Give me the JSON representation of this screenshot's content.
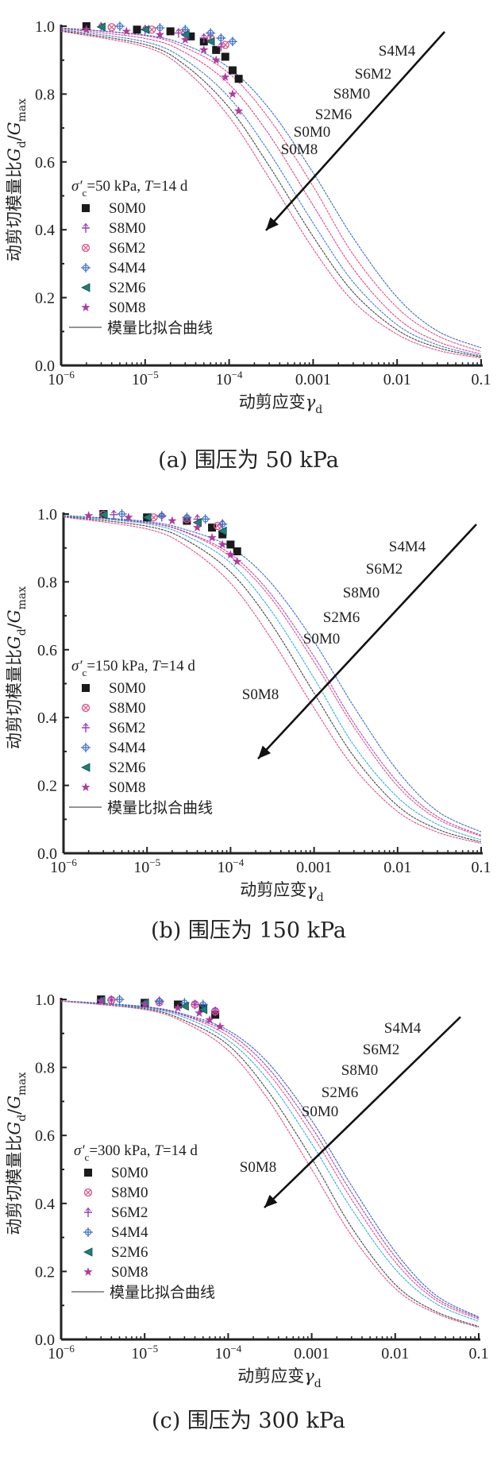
{
  "chart_data": [
    {
      "type": "line",
      "panel": "a",
      "caption": "(a) 围压为 50 kPa",
      "condition": {
        "prefix": "σ′",
        "sub": "c",
        "text": "=50 kPa, ",
        "T": "T",
        "t_text": "=14 d"
      },
      "xlabel": {
        "text": "动剪应变",
        "sym": "γ",
        "sub": "d"
      },
      "ylabel": {
        "text": "动剪切模量比",
        "sym1": "G",
        "sub1": "d",
        "slash": "/",
        "sym2": "G",
        "sub2": "max"
      },
      "xscale": "log",
      "xlim": [
        1e-06,
        0.1
      ],
      "ylim": [
        0,
        1.0
      ],
      "xticks": [
        {
          "v": 1e-06,
          "base": "10",
          "exp": "−6"
        },
        {
          "v": 1e-05,
          "base": "10",
          "exp": "−5"
        },
        {
          "v": 0.0001,
          "base": "10",
          "exp": "−4"
        },
        {
          "v": 0.001,
          "base": "0.001",
          "exp": ""
        },
        {
          "v": 0.01,
          "base": "0.01",
          "exp": ""
        },
        {
          "v": 0.1,
          "base": "0.1",
          "exp": ""
        }
      ],
      "yticks": [
        {
          "v": 0.0,
          "label": "0.0"
        },
        {
          "v": 0.2,
          "label": "0.2"
        },
        {
          "v": 0.4,
          "label": "0.4"
        },
        {
          "v": 0.6,
          "label": "0.6"
        },
        {
          "v": 0.8,
          "label": "0.8"
        },
        {
          "v": 1.0,
          "label": "1.0"
        }
      ],
      "legend_placement": "left",
      "fit_legend": "模量比拟合曲线",
      "arrow_labels": [
        "S4M4",
        "S6M2",
        "S8M0",
        "S2M6",
        "S0M0",
        "S0M8"
      ],
      "x": [
        1e-06,
        1e-05,
        3e-05,
        0.0001,
        0.0003,
        0.001,
        0.003,
        0.01,
        0.03,
        0.1
      ],
      "series": [
        {
          "name": "S0M0",
          "marker": "square",
          "color": "#1a1a1a",
          "line_color": "#444444",
          "values": [
            0.987,
            0.946,
            0.885,
            0.76,
            0.588,
            0.38,
            0.216,
            0.105,
            0.053,
            0.025
          ],
          "points": [
            [
              2e-06,
              1.0
            ],
            [
              8e-06,
              0.99
            ],
            [
              2e-05,
              0.985
            ],
            [
              3.5e-05,
              0.97
            ],
            [
              5e-05,
              0.955
            ],
            [
              7e-05,
              0.93
            ],
            [
              9e-05,
              0.91
            ],
            [
              0.00011,
              0.87
            ],
            [
              0.00013,
              0.845
            ]
          ]
        },
        {
          "name": "S8M0",
          "marker": "plus-circle",
          "color": "#9b3fb5",
          "line_color": "#d9468c",
          "values": [
            0.993,
            0.964,
            0.922,
            0.829,
            0.68,
            0.472,
            0.285,
            0.14,
            0.071,
            0.033
          ],
          "points": [
            [
              3e-06,
              0.998
            ],
            [
              1e-05,
              0.99
            ],
            [
              2.5e-05,
              0.98
            ],
            [
              5e-05,
              0.965
            ],
            [
              8e-05,
              0.94
            ]
          ]
        },
        {
          "name": "S6M2",
          "marker": "circle-x",
          "color": "#e0508a",
          "line_color": "#e0508a",
          "values": [
            0.995,
            0.972,
            0.937,
            0.861,
            0.727,
            0.528,
            0.327,
            0.171,
            0.088,
            0.041
          ],
          "points": [
            [
              4e-06,
              0.997
            ],
            [
              1.2e-05,
              0.99
            ],
            [
              3e-05,
              0.98
            ],
            [
              6e-05,
              0.965
            ],
            [
              9e-05,
              0.945
            ]
          ]
        },
        {
          "name": "S4M4",
          "marker": "diamond-cross",
          "color": "#3a6fc4",
          "line_color": "#3a6fc4",
          "values": [
            0.995,
            0.974,
            0.945,
            0.877,
            0.757,
            0.568,
            0.376,
            0.201,
            0.102,
            0.052
          ],
          "points": [
            [
              5e-06,
              1.0
            ],
            [
              1.5e-05,
              0.995
            ],
            [
              3e-05,
              0.99
            ],
            [
              6e-05,
              0.98
            ],
            [
              8e-05,
              0.965
            ],
            [
              0.00011,
              0.955
            ]
          ]
        },
        {
          "name": "S2M6",
          "marker": "triangle-left",
          "color": "#1b7f7a",
          "line_color": "#3a7fd0",
          "values": [
            0.99,
            0.954,
            0.901,
            0.79,
            0.628,
            0.42,
            0.246,
            0.12,
            0.061,
            0.028
          ],
          "points": [
            [
              3e-06,
              0.998
            ],
            [
              1e-05,
              0.99
            ],
            [
              3e-05,
              0.975
            ],
            [
              6e-05,
              0.955
            ]
          ]
        },
        {
          "name": "S0M8",
          "marker": "star",
          "color": "#b03aa0",
          "line_color": "#e0508a",
          "values": [
            0.985,
            0.939,
            0.871,
            0.733,
            0.552,
            0.344,
            0.189,
            0.092,
            0.045,
            0.022
          ],
          "points": [
            [
              2e-06,
              0.99
            ],
            [
              6e-06,
              0.985
            ],
            [
              1.5e-05,
              0.975
            ],
            [
              3e-05,
              0.96
            ],
            [
              5e-05,
              0.93
            ],
            [
              7e-05,
              0.9
            ],
            [
              9e-05,
              0.85
            ],
            [
              0.00011,
              0.8
            ],
            [
              0.00013,
              0.75
            ]
          ]
        }
      ]
    },
    {
      "type": "line",
      "panel": "b",
      "caption": "(b) 围压为 150 kPa",
      "condition": {
        "prefix": "σ′",
        "sub": "c",
        "text": "=150 kPa, ",
        "T": "T",
        "t_text": "=14 d"
      },
      "xlabel": {
        "text": "动剪应变",
        "sym": "γ",
        "sub": "d"
      },
      "ylabel": {
        "text": "动剪切模量比",
        "sym1": "G",
        "sub1": "d",
        "slash": "/",
        "sym2": "G",
        "sub2": "max"
      },
      "xscale": "log",
      "xlim": [
        1e-06,
        0.1
      ],
      "ylim": [
        0,
        1.0
      ],
      "xticks": [
        {
          "v": 1e-06,
          "base": "10",
          "exp": "−6"
        },
        {
          "v": 1e-05,
          "base": "10",
          "exp": "−5"
        },
        {
          "v": 0.0001,
          "base": "10",
          "exp": "−4"
        },
        {
          "v": 0.001,
          "base": "0.001",
          "exp": ""
        },
        {
          "v": 0.01,
          "base": "0.01",
          "exp": ""
        },
        {
          "v": 0.1,
          "base": "0.1",
          "exp": ""
        }
      ],
      "yticks": [
        {
          "v": 0.0,
          "label": "0.0"
        },
        {
          "v": 0.2,
          "label": "0.2"
        },
        {
          "v": 0.4,
          "label": "0.4"
        },
        {
          "v": 0.6,
          "label": "0.6"
        },
        {
          "v": 0.8,
          "label": "0.8"
        },
        {
          "v": 1.0,
          "label": "1.0"
        }
      ],
      "legend_placement": "left",
      "fit_legend": "模量比拟合曲线",
      "arrow_labels": [
        "S4M4",
        "S6M2",
        "S8M0",
        "S2M6",
        "S0M0",
        "S0M8"
      ],
      "x": [
        1e-06,
        1e-05,
        3e-05,
        0.0001,
        0.0003,
        0.001,
        0.003,
        0.01,
        0.03,
        0.1
      ],
      "series": [
        {
          "name": "S0M0",
          "marker": "square",
          "color": "#1a1a1a",
          "line_color": "#444444",
          "values": [
            0.993,
            0.964,
            0.922,
            0.829,
            0.68,
            0.472,
            0.285,
            0.14,
            0.071,
            0.033
          ],
          "points": [
            [
              3e-06,
              1.0
            ],
            [
              1e-05,
              0.99
            ],
            [
              3e-05,
              0.98
            ],
            [
              6e-05,
              0.96
            ],
            [
              8e-05,
              0.94
            ],
            [
              0.0001,
              0.91
            ],
            [
              0.00012,
              0.89
            ]
          ]
        },
        {
          "name": "S8M0",
          "marker": "circle-x",
          "color": "#e0508a",
          "line_color": "#e0508a",
          "values": [
            0.995,
            0.974,
            0.944,
            0.874,
            0.754,
            0.564,
            0.372,
            0.198,
            0.101,
            0.05
          ],
          "points": [
            [
              3e-06,
              0.998
            ],
            [
              1.2e-05,
              0.99
            ],
            [
              3e-05,
              0.985
            ],
            [
              7e-05,
              0.965
            ]
          ]
        },
        {
          "name": "S6M2",
          "marker": "plus-circle",
          "color": "#9b3fb5",
          "line_color": "#b04ab0",
          "values": [
            0.995,
            0.975,
            0.946,
            0.882,
            0.766,
            0.58,
            0.384,
            0.21,
            0.108,
            0.053
          ],
          "points": [
            [
              4e-06,
              0.998
            ],
            [
              1.5e-05,
              0.992
            ],
            [
              4e-05,
              0.985
            ],
            [
              8e-05,
              0.97
            ]
          ]
        },
        {
          "name": "S4M4",
          "marker": "diamond-cross",
          "color": "#3a6fc4",
          "line_color": "#3a6fc4",
          "values": [
            0.996,
            0.978,
            0.953,
            0.902,
            0.799,
            0.624,
            0.432,
            0.243,
            0.124,
            0.063
          ],
          "points": [
            [
              5e-06,
              1.0
            ],
            [
              1.5e-05,
              0.995
            ],
            [
              3e-05,
              0.99
            ],
            [
              5e-05,
              0.985
            ],
            [
              8e-05,
              0.97
            ]
          ]
        },
        {
          "name": "S2M6",
          "marker": "triangle-left",
          "color": "#1b7f7a",
          "line_color": "#2bb0d8",
          "values": [
            0.995,
            0.971,
            0.935,
            0.856,
            0.718,
            0.516,
            0.318,
            0.165,
            0.085,
            0.039
          ],
          "points": [
            [
              3e-06,
              0.998
            ],
            [
              1e-05,
              0.99
            ],
            [
              4e-05,
              0.975
            ],
            [
              8e-05,
              0.95
            ]
          ]
        },
        {
          "name": "S0M8",
          "marker": "star",
          "color": "#b03aa0",
          "line_color": "#e0508a",
          "values": [
            0.991,
            0.956,
            0.904,
            0.796,
            0.636,
            0.428,
            0.252,
            0.123,
            0.062,
            0.029
          ],
          "points": [
            [
              2e-06,
              0.995
            ],
            [
              6e-06,
              0.99
            ],
            [
              2e-05,
              0.98
            ],
            [
              4e-05,
              0.96
            ],
            [
              6e-05,
              0.93
            ],
            [
              8e-05,
              0.91
            ],
            [
              0.0001,
              0.88
            ],
            [
              0.00012,
              0.86
            ]
          ]
        }
      ]
    },
    {
      "type": "line",
      "panel": "c",
      "caption": "(c) 围压为 300 kPa",
      "condition": {
        "prefix": "σ′",
        "sub": "c",
        "text": "=300 kPa, ",
        "T": "T",
        "t_text": "=14 d"
      },
      "xlabel": {
        "text": "动剪应变",
        "sym": "γ",
        "sub": "d"
      },
      "ylabel": {
        "text": "动剪切模量比",
        "sym1": "G",
        "sub1": "d",
        "slash": "/",
        "sym2": "G",
        "sub2": "max"
      },
      "xscale": "log",
      "xlim": [
        1e-06,
        0.1
      ],
      "ylim": [
        0,
        1.0
      ],
      "xticks": [
        {
          "v": 1e-06,
          "base": "10",
          "exp": "−6"
        },
        {
          "v": 1e-05,
          "base": "10",
          "exp": "−5"
        },
        {
          "v": 0.0001,
          "base": "10",
          "exp": "−4"
        },
        {
          "v": 0.001,
          "base": "0.001",
          "exp": ""
        },
        {
          "v": 0.01,
          "base": "0.01",
          "exp": ""
        },
        {
          "v": 0.1,
          "base": "0.1",
          "exp": ""
        }
      ],
      "yticks": [
        {
          "v": 0.0,
          "label": "0.0"
        },
        {
          "v": 0.2,
          "label": "0.2"
        },
        {
          "v": 0.4,
          "label": "0.4"
        },
        {
          "v": 0.6,
          "label": "0.6"
        },
        {
          "v": 0.8,
          "label": "0.8"
        },
        {
          "v": 1.0,
          "label": "1.0"
        }
      ],
      "legend_placement": "left",
      "fit_legend": "模量比拟合曲线",
      "arrow_labels": [
        "S4M4",
        "S6M2",
        "S8M0",
        "S2M6",
        "S0M0",
        "S0M8"
      ],
      "x": [
        1e-06,
        1e-05,
        3e-05,
        0.0001,
        0.0003,
        0.001,
        0.003,
        0.01,
        0.03,
        0.1
      ],
      "series": [
        {
          "name": "S0M0",
          "marker": "square",
          "color": "#1a1a1a",
          "line_color": "#444444",
          "values": [
            0.995,
            0.973,
            0.938,
            0.866,
            0.73,
            0.532,
            0.33,
            0.162,
            0.083,
            0.038
          ],
          "points": [
            [
              3e-06,
              1.0
            ],
            [
              1e-05,
              0.99
            ],
            [
              2.5e-05,
              0.985
            ],
            [
              5e-05,
              0.975
            ],
            [
              7e-05,
              0.955
            ]
          ]
        },
        {
          "name": "S8M0",
          "marker": "circle-x",
          "color": "#e0508a",
          "line_color": "#e0508a",
          "values": [
            0.996,
            0.977,
            0.952,
            0.892,
            0.784,
            0.604,
            0.412,
            0.228,
            0.117,
            0.059
          ],
          "points": [
            [
              4e-06,
              0.998
            ],
            [
              1.5e-05,
              0.992
            ],
            [
              4e-05,
              0.985
            ],
            [
              7e-05,
              0.965
            ]
          ]
        },
        {
          "name": "S6M2",
          "marker": "plus-circle",
          "color": "#9b3fb5",
          "line_color": "#9b3fb5",
          "values": [
            0.996,
            0.978,
            0.953,
            0.902,
            0.799,
            0.624,
            0.432,
            0.243,
            0.124,
            0.063
          ],
          "points": [
            [
              4e-06,
              0.998
            ],
            [
              1.5e-05,
              0.994
            ],
            [
              4e-05,
              0.985
            ],
            [
              7e-05,
              0.965
            ]
          ]
        },
        {
          "name": "S4M4",
          "marker": "diamond-cross",
          "color": "#3a6fc4",
          "line_color": "#3a5fc0",
          "values": [
            0.996,
            0.979,
            0.956,
            0.909,
            0.814,
            0.644,
            0.452,
            0.258,
            0.132,
            0.066
          ],
          "points": [
            [
              5e-06,
              1.0
            ],
            [
              1.5e-05,
              0.995
            ],
            [
              3e-05,
              0.99
            ],
            [
              5e-05,
              0.985
            ]
          ]
        },
        {
          "name": "S2M6",
          "marker": "triangle-left",
          "color": "#1b7f7a",
          "line_color": "#2bb0d8",
          "values": [
            0.995,
            0.975,
            0.947,
            0.88,
            0.763,
            0.576,
            0.384,
            0.207,
            0.107,
            0.053
          ],
          "points": [
            [
              3e-06,
              0.998
            ],
            [
              1e-05,
              0.99
            ],
            [
              3e-05,
              0.98
            ],
            [
              5e-05,
              0.97
            ]
          ]
        },
        {
          "name": "S0M8",
          "marker": "star",
          "color": "#b03aa0",
          "line_color": "#e0508a",
          "values": [
            0.995,
            0.97,
            0.932,
            0.85,
            0.706,
            0.5,
            0.306,
            0.15,
            0.078,
            0.035
          ],
          "points": [
            [
              3e-06,
              0.995
            ],
            [
              1e-05,
              0.985
            ],
            [
              2.5e-05,
              0.975
            ],
            [
              4.5e-05,
              0.96
            ],
            [
              6e-05,
              0.94
            ],
            [
              8e-05,
              0.92
            ]
          ]
        }
      ]
    }
  ]
}
